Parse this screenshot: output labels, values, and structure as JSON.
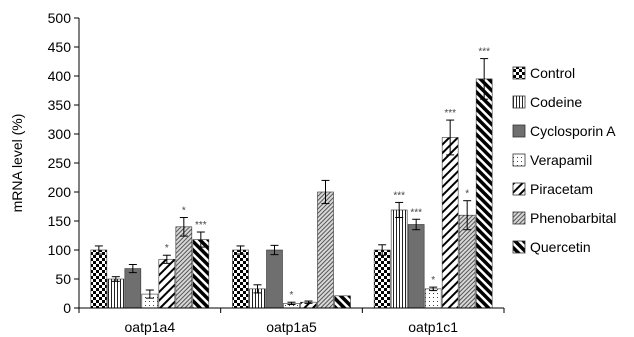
{
  "chart_data": {
    "type": "bar",
    "title": "",
    "xlabel": "",
    "ylabel": "mRNA level (%)",
    "ylim": [
      0,
      500
    ],
    "yticks": [
      0,
      50,
      100,
      150,
      200,
      250,
      300,
      350,
      400,
      450,
      500
    ],
    "categories": [
      "oatp1a4",
      "oatp1a5",
      "oatp1c1"
    ],
    "grid": false,
    "legend_position": "right",
    "series": [
      {
        "name": "Control",
        "pattern": "checker",
        "values": [
          100,
          100,
          100
        ],
        "errors": [
          7,
          7,
          9
        ],
        "sig": [
          "",
          "",
          ""
        ]
      },
      {
        "name": "Codeine",
        "pattern": "vlines",
        "values": [
          50,
          33,
          169
        ],
        "errors": [
          4,
          7,
          13
        ],
        "sig": [
          "",
          "",
          "***"
        ]
      },
      {
        "name": "Cyclosporin A",
        "pattern": "solid",
        "values": [
          68,
          100,
          144
        ],
        "errors": [
          7,
          8,
          9
        ],
        "sig": [
          "",
          "",
          "***"
        ]
      },
      {
        "name": "Verapamil",
        "pattern": "dots",
        "values": [
          24,
          8,
          33
        ],
        "errors": [
          7,
          2,
          3
        ],
        "sig": [
          "",
          "*",
          "*"
        ]
      },
      {
        "name": "Piracetam",
        "pattern": "diag-sparse",
        "values": [
          84,
          10,
          294
        ],
        "errors": [
          7,
          2,
          30
        ],
        "sig": [
          "*",
          "",
          "***"
        ]
      },
      {
        "name": "Phenobarbital",
        "pattern": "diag-dense",
        "values": [
          140,
          200,
          160
        ],
        "errors": [
          16,
          20,
          25
        ],
        "sig": [
          "*",
          "",
          "*"
        ]
      },
      {
        "name": "Quercetin",
        "pattern": "diag-thick",
        "values": [
          118,
          21,
          395
        ],
        "errors": [
          13,
          0,
          35
        ],
        "sig": [
          "***",
          "",
          "***"
        ]
      }
    ]
  }
}
